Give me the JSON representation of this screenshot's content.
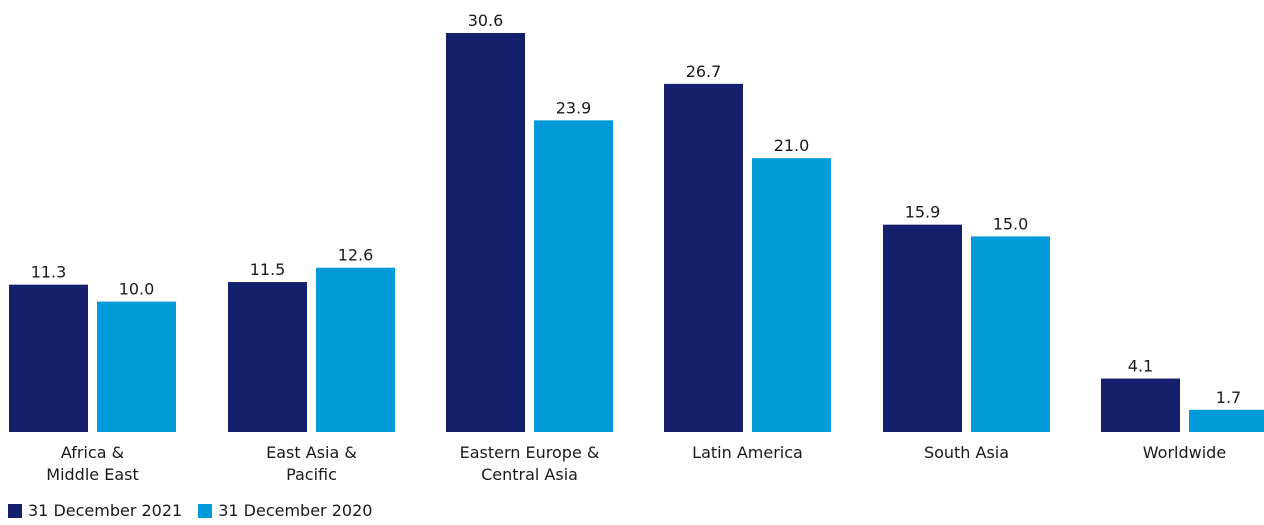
{
  "chart_data": {
    "type": "bar",
    "title": "",
    "xlabel": "",
    "ylabel": "",
    "ylim": [
      0,
      30.6
    ],
    "categories": [
      [
        "Africa &",
        "Middle East"
      ],
      [
        "East Asia &",
        "Pacific"
      ],
      [
        "Eastern Europe &",
        "Central Asia"
      ],
      [
        "Latin America"
      ],
      [
        "South Asia"
      ],
      [
        "Worldwide"
      ]
    ],
    "series": [
      {
        "name": "31 December 2021",
        "color": "#14206b",
        "values": [
          11.3,
          11.5,
          30.6,
          26.7,
          15.9,
          4.1
        ],
        "labels": [
          "11.3",
          "11.5",
          "30.6",
          "26.7",
          "15.9",
          "4.1"
        ]
      },
      {
        "name": "31 December 2020",
        "color": "#009ad9",
        "values": [
          10.0,
          12.6,
          23.9,
          21.0,
          15.0,
          1.7
        ],
        "labels": [
          "10.0",
          "12.6",
          "23.9",
          "21.0",
          "15.0",
          "1.7"
        ]
      }
    ],
    "legend_position": "bottom-left",
    "grid": false
  }
}
